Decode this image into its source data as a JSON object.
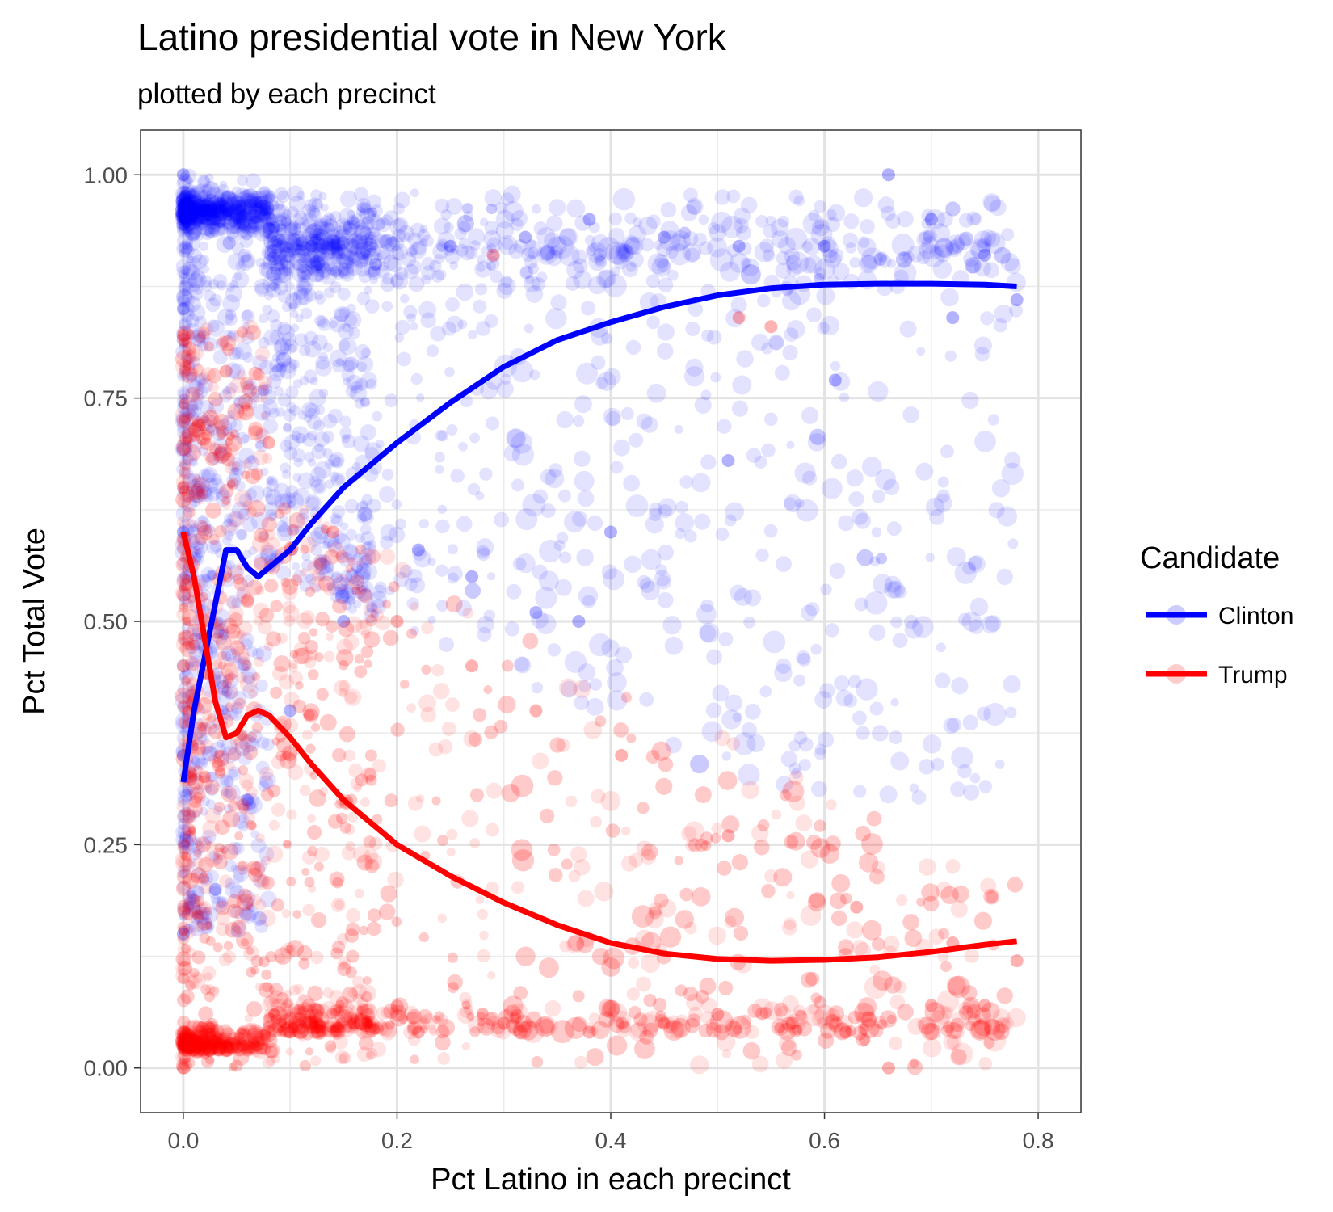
{
  "chart_data": {
    "type": "scatter",
    "title": "Latino presidential vote in New York",
    "subtitle": "plotted by each precinct",
    "xlabel": "Pct Latino in each precinct",
    "ylabel": "Pct Total Vote",
    "xlim": [
      -0.04,
      0.84
    ],
    "ylim": [
      -0.05,
      1.05
    ],
    "x_ticks": [
      0.0,
      0.2,
      0.4,
      0.6,
      0.8
    ],
    "x_tick_labels": [
      "0.0",
      "0.2",
      "0.4",
      "0.6",
      "0.8"
    ],
    "y_ticks": [
      0.0,
      0.25,
      0.5,
      0.75,
      1.0
    ],
    "y_tick_labels": [
      "0.00",
      "0.25",
      "0.50",
      "0.75",
      "1.00"
    ],
    "grid": true,
    "legend": {
      "title": "Candidate",
      "placement": "right"
    },
    "series": [
      {
        "name": "Clinton",
        "color": "#0000ff",
        "trend": {
          "x": [
            0.0,
            0.01,
            0.02,
            0.03,
            0.04,
            0.05,
            0.06,
            0.07,
            0.08,
            0.1,
            0.12,
            0.15,
            0.2,
            0.25,
            0.3,
            0.35,
            0.4,
            0.45,
            0.5,
            0.55,
            0.6,
            0.65,
            0.7,
            0.75,
            0.78
          ],
          "y": [
            0.32,
            0.4,
            0.46,
            0.52,
            0.58,
            0.58,
            0.56,
            0.55,
            0.56,
            0.58,
            0.61,
            0.65,
            0.7,
            0.745,
            0.785,
            0.815,
            0.835,
            0.852,
            0.865,
            0.873,
            0.877,
            0.878,
            0.878,
            0.877,
            0.875
          ]
        },
        "points": [
          {
            "x": 0.0,
            "y": 1.0
          },
          {
            "x": 0.01,
            "y": 0.96
          },
          {
            "x": 0.03,
            "y": 0.95
          },
          {
            "x": 0.05,
            "y": 0.97
          },
          {
            "x": 0.08,
            "y": 0.94
          },
          {
            "x": 0.12,
            "y": 0.92
          },
          {
            "x": 0.18,
            "y": 0.9
          },
          {
            "x": 0.25,
            "y": 0.92
          },
          {
            "x": 0.32,
            "y": 0.93
          },
          {
            "x": 0.38,
            "y": 0.95
          },
          {
            "x": 0.45,
            "y": 0.93
          },
          {
            "x": 0.52,
            "y": 0.92
          },
          {
            "x": 0.6,
            "y": 0.92
          },
          {
            "x": 0.66,
            "y": 1.0
          },
          {
            "x": 0.7,
            "y": 0.95
          },
          {
            "x": 0.75,
            "y": 0.91
          },
          {
            "x": 0.78,
            "y": 0.86
          },
          {
            "x": 0.72,
            "y": 0.84
          },
          {
            "x": 0.61,
            "y": 0.77
          },
          {
            "x": 0.51,
            "y": 0.68
          },
          {
            "x": 0.4,
            "y": 0.6
          },
          {
            "x": 0.33,
            "y": 0.51
          },
          {
            "x": 0.37,
            "y": 0.5
          },
          {
            "x": 0.27,
            "y": 0.55
          },
          {
            "x": 0.22,
            "y": 0.58
          },
          {
            "x": 0.15,
            "y": 0.5
          },
          {
            "x": 0.1,
            "y": 0.4
          },
          {
            "x": 0.06,
            "y": 0.3
          },
          {
            "x": 0.03,
            "y": 0.2
          },
          {
            "x": 0.0,
            "y": 0.15
          },
          {
            "x": 0.0,
            "y": 0.35
          },
          {
            "x": 0.0,
            "y": 0.6
          },
          {
            "x": 0.0,
            "y": 0.85
          }
        ]
      },
      {
        "name": "Trump",
        "color": "#ff0000",
        "trend": {
          "x": [
            0.0,
            0.01,
            0.02,
            0.03,
            0.04,
            0.05,
            0.06,
            0.07,
            0.08,
            0.1,
            0.12,
            0.15,
            0.2,
            0.25,
            0.3,
            0.35,
            0.4,
            0.45,
            0.5,
            0.55,
            0.6,
            0.65,
            0.7,
            0.75,
            0.78
          ],
          "y": [
            0.6,
            0.55,
            0.48,
            0.41,
            0.37,
            0.375,
            0.395,
            0.4,
            0.395,
            0.37,
            0.34,
            0.3,
            0.25,
            0.215,
            0.185,
            0.16,
            0.14,
            0.128,
            0.122,
            0.12,
            0.121,
            0.124,
            0.13,
            0.138,
            0.142
          ]
        },
        "points": [
          {
            "x": 0.0,
            "y": 0.0
          },
          {
            "x": 0.01,
            "y": 0.02
          },
          {
            "x": 0.03,
            "y": 0.03
          },
          {
            "x": 0.06,
            "y": 0.02
          },
          {
            "x": 0.1,
            "y": 0.04
          },
          {
            "x": 0.16,
            "y": 0.05
          },
          {
            "x": 0.22,
            "y": 0.04
          },
          {
            "x": 0.3,
            "y": 0.05
          },
          {
            "x": 0.38,
            "y": 0.04
          },
          {
            "x": 0.45,
            "y": 0.05
          },
          {
            "x": 0.5,
            "y": 0.06
          },
          {
            "x": 0.57,
            "y": 0.05
          },
          {
            "x": 0.62,
            "y": 0.04
          },
          {
            "x": 0.66,
            "y": 0.0
          },
          {
            "x": 0.7,
            "y": 0.07
          },
          {
            "x": 0.75,
            "y": 0.07
          },
          {
            "x": 0.78,
            "y": 0.12
          },
          {
            "x": 0.72,
            "y": 0.14
          },
          {
            "x": 0.63,
            "y": 0.18
          },
          {
            "x": 0.51,
            "y": 0.26
          },
          {
            "x": 0.41,
            "y": 0.35
          },
          {
            "x": 0.33,
            "y": 0.4
          },
          {
            "x": 0.27,
            "y": 0.45
          },
          {
            "x": 0.2,
            "y": 0.5
          },
          {
            "x": 0.14,
            "y": 0.6
          },
          {
            "x": 0.08,
            "y": 0.7
          },
          {
            "x": 0.04,
            "y": 0.78
          },
          {
            "x": 0.0,
            "y": 0.82
          },
          {
            "x": 0.0,
            "y": 0.65
          },
          {
            "x": 0.0,
            "y": 0.45
          },
          {
            "x": 0.52,
            "y": 0.84
          },
          {
            "x": 0.55,
            "y": 0.83
          },
          {
            "x": 0.29,
            "y": 0.91
          }
        ]
      }
    ]
  }
}
